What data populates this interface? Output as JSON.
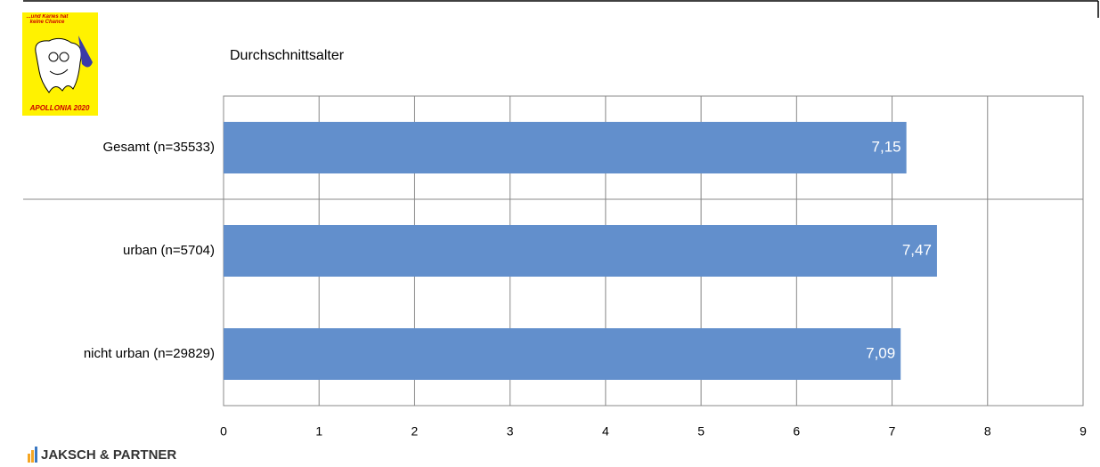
{
  "chart_data": {
    "type": "hbar",
    "title": "Durchschnittsalter",
    "categories": [
      "Gesamt (n=35533)",
      "urban (n=5704)",
      "nicht urban (n=29829)"
    ],
    "values": [
      7.15,
      7.47,
      7.09
    ],
    "value_labels": [
      "7,15",
      "7,47",
      "7,09"
    ],
    "color": "#628fcc",
    "xlim": [
      0,
      9
    ],
    "xticks": [
      0,
      1,
      2,
      3,
      4,
      5,
      6,
      7,
      8,
      9
    ],
    "grid": true,
    "annotations": [
      "...und Karies hat keine Chance",
      "APOLLONIA 2020",
      "JAKSCH & PARTNER"
    ]
  }
}
